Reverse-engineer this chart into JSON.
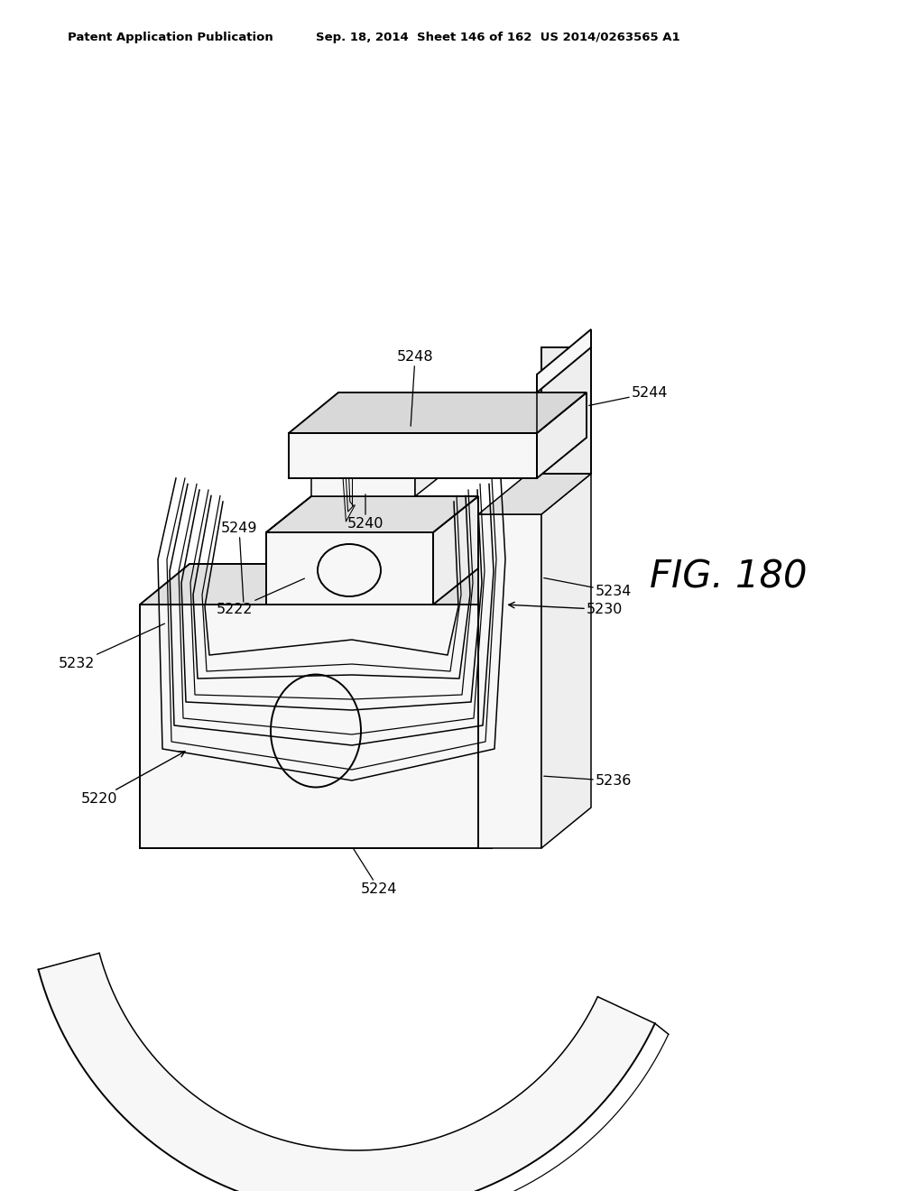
{
  "header_left": "Patent Application Publication",
  "header_right": "Sep. 18, 2014  Sheet 146 of 162  US 2014/0263565 A1",
  "fig_label": "FIG. 180",
  "bg_color": "#ffffff"
}
